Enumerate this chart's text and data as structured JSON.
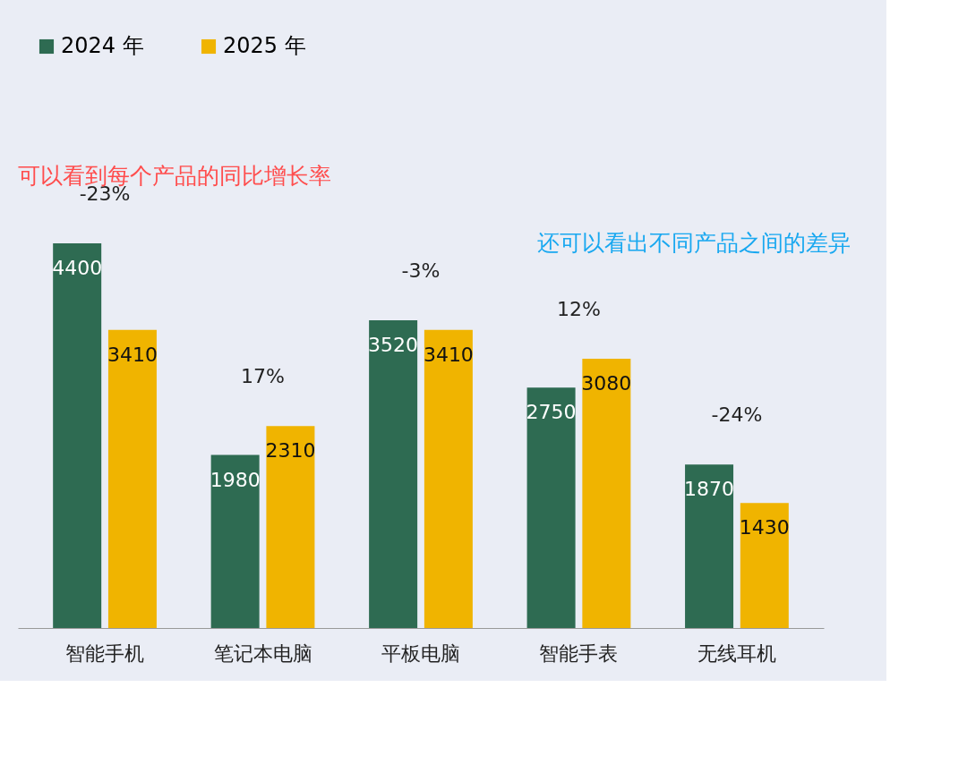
{
  "chart_data": {
    "type": "bar",
    "categories": [
      "智能手机",
      "笔记本电脑",
      "平板电脑",
      "智能手表",
      "无线耳机"
    ],
    "series": [
      {
        "name": "2024 年",
        "color": "#2e6b52",
        "values": [
          4400,
          1980,
          3520,
          2750,
          1870
        ]
      },
      {
        "name": "2025 年",
        "color": "#f0b400",
        "values": [
          3410,
          2310,
          3410,
          3080,
          1430
        ]
      }
    ],
    "data_labels": true,
    "legend": "top",
    "grid": false,
    "annotations": [
      "-23%",
      "17%",
      "-3%",
      "12%",
      "-24%",
      "可以看到每个产品的同比增长率",
      "还可以看出不同产品之间的差异"
    ]
  }
}
